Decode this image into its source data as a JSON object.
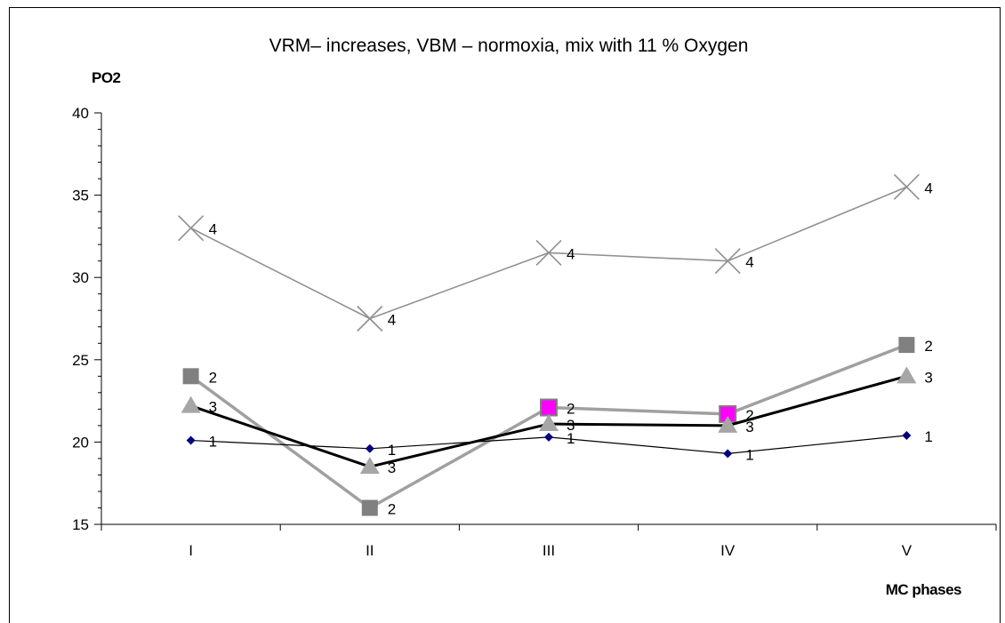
{
  "chart_data": {
    "type": "line",
    "title": "VRM– increases, VBM – normoxia, mix  with 11 % Oxygen",
    "ylabel": "PO2",
    "xlabel": "MC phases",
    "categories": [
      "I",
      "II",
      "III",
      "IV",
      "V"
    ],
    "ylim": [
      15,
      40
    ],
    "yticks": [
      "15",
      "20",
      "25",
      "30",
      "35",
      "40"
    ],
    "grid": false,
    "legend": "none",
    "series": [
      {
        "label": "1",
        "values": [
          20.1,
          19.6,
          20.3,
          19.3,
          20.4
        ],
        "color": "#000000",
        "marker": "diamond",
        "marker_color": "#000080"
      },
      {
        "label": "2",
        "values": [
          24.0,
          16.0,
          22.1,
          21.7,
          25.9
        ],
        "color": "#a0a0a0",
        "marker": "square",
        "marker_color": "#808080",
        "highlight_color": "#ff00ff"
      },
      {
        "label": "3",
        "values": [
          22.2,
          18.5,
          21.1,
          21.0,
          24.0
        ],
        "color": "#000000",
        "marker": "triangle",
        "marker_color": "#a6a6a6"
      },
      {
        "label": "4",
        "values": [
          33.0,
          27.5,
          31.5,
          31.0,
          35.5
        ],
        "color": "#909090",
        "marker": "x",
        "marker_color": "#909090"
      }
    ]
  }
}
